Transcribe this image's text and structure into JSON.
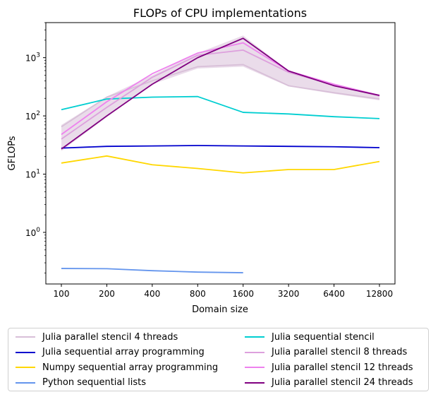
{
  "chart_data": {
    "type": "line",
    "title": "FLOPs of CPU implementations",
    "xlabel": "Domain size",
    "ylabel": "GFLOPs",
    "x": [
      "100",
      "200",
      "400",
      "800",
      "1600",
      "3200",
      "6400",
      "12800"
    ],
    "yscale": "log",
    "ylim": [
      0.13,
      4000
    ],
    "yticks": [
      {
        "value": 1,
        "base": "10",
        "exp": "0"
      },
      {
        "value": 10,
        "base": "10",
        "exp": "1"
      },
      {
        "value": 100,
        "base": "10",
        "exp": "2"
      },
      {
        "value": 1000,
        "base": "10",
        "exp": "3"
      }
    ],
    "grid": false,
    "legend_position": "below",
    "series": [
      {
        "name": "Julia parallel stencil 4 threads",
        "color": "#d8bfd8",
        "values": [
          65,
          210,
          400,
          700,
          760,
          330,
          250,
          195
        ],
        "band_low": [
          25,
          95,
          350,
          650,
          700,
          320,
          240,
          185
        ],
        "band_high": [
          70,
          215,
          500,
          1200,
          2400,
          600,
          330,
          230
        ]
      },
      {
        "name": "Julia sequential array programming",
        "color": "#0000cd",
        "values": [
          28,
          30,
          30.5,
          31,
          30.5,
          30,
          29.5,
          28.5
        ]
      },
      {
        "name": "Numpy sequential array programming",
        "color": "#ffd700",
        "values": [
          15.5,
          20.5,
          14.5,
          12.5,
          10.5,
          12,
          12,
          16.5
        ]
      },
      {
        "name": "Python sequential lists",
        "color": "#6495ed",
        "values": [
          0.24,
          0.238,
          0.22,
          0.208,
          0.203,
          null,
          null,
          null
        ]
      },
      {
        "name": "Julia sequential stencil",
        "color": "#00ced1",
        "values": [
          128,
          195,
          210,
          215,
          115,
          108,
          97,
          90
        ]
      },
      {
        "name": "Julia parallel stencil 8 threads",
        "color": "#dda0dd",
        "values": [
          40,
          140,
          460,
          1100,
          1350,
          560,
          340,
          220
        ]
      },
      {
        "name": "Julia parallel stencil 12 threads",
        "color": "#ee82ee",
        "values": [
          48,
          175,
          530,
          1200,
          1800,
          590,
          350,
          225
        ]
      },
      {
        "name": "Julia parallel stencil 24 threads",
        "color": "#800080",
        "values": [
          27,
          100,
          350,
          1000,
          2150,
          590,
          330,
          225
        ]
      }
    ]
  }
}
